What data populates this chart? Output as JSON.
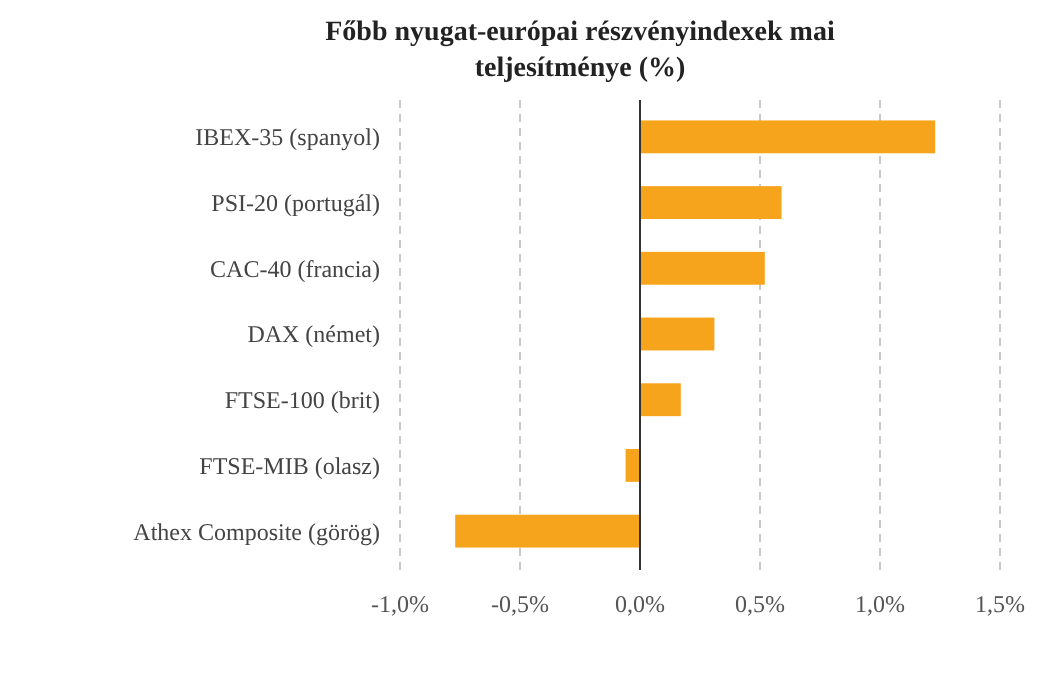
{
  "chart_data": {
    "type": "bar",
    "orientation": "horizontal",
    "title": "Főbb nyugat-európai részvényindexek mai teljesítménye (%)",
    "categories": [
      "IBEX-35 (spanyol)",
      "PSI-20 (portugál)",
      "CAC-40 (francia)",
      "DAX (német)",
      "FTSE-100 (brit)",
      "FTSE-MIB (olasz)",
      "Athex Composite (görög)"
    ],
    "values": [
      1.23,
      0.59,
      0.52,
      0.31,
      0.17,
      -0.06,
      -0.77
    ],
    "color": "#f7a41d",
    "xlim": [
      -1.0,
      1.5
    ],
    "xticks": [
      {
        "value": -1.0,
        "label": "-1,0%"
      },
      {
        "value": -0.5,
        "label": "-0,5%"
      },
      {
        "value": 0,
        "label": "0,0%"
      },
      {
        "value": 0.5,
        "label": "0,5%"
      },
      {
        "value": 1.0,
        "label": "1,0%"
      },
      {
        "value": 1.5,
        "label": "1,5%"
      }
    ],
    "grid": "x"
  }
}
